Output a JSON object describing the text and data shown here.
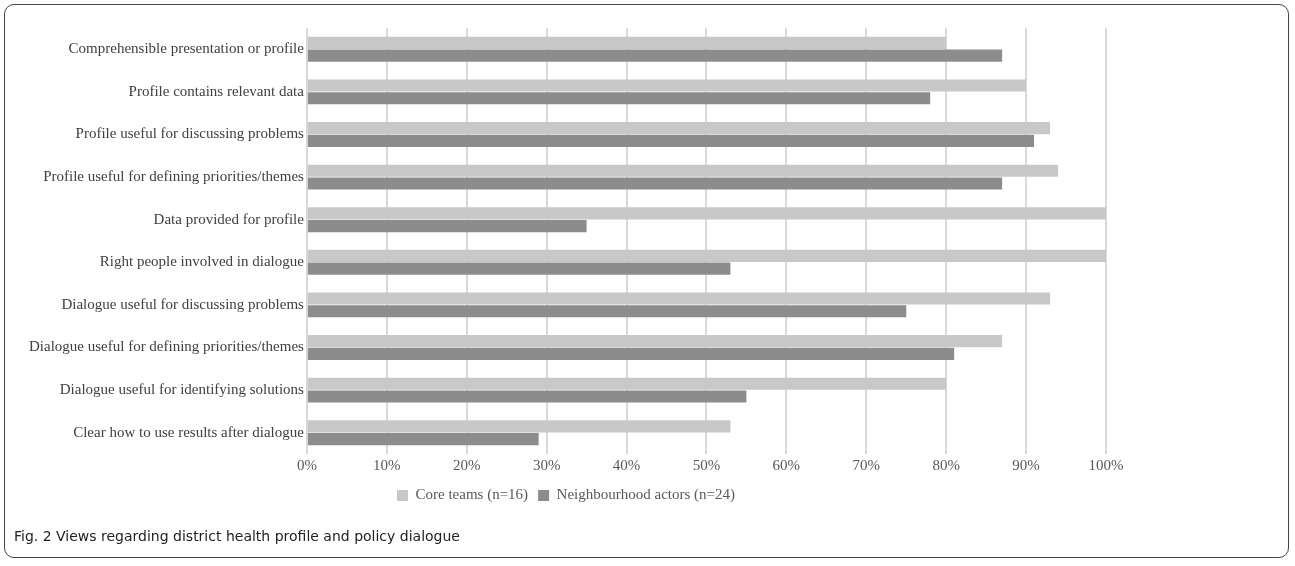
{
  "chart_data": {
    "type": "bar",
    "orientation": "horizontal",
    "categories": [
      "Comprehensible presentation or profile",
      "Profile contains relevant data",
      "Profile useful for discussing problems",
      "Profile useful for defining priorities/themes",
      "Data provided for profile",
      "Right people involved in dialogue",
      "Dialogue useful for discussing problems",
      "Dialogue useful for defining priorities/themes",
      "Dialogue useful for identifying solutions",
      "Clear how to use results after dialogue"
    ],
    "series": [
      {
        "name": "Core teams (n=16)",
        "color": "#c8c8c8",
        "values": [
          80,
          90,
          93,
          94,
          100,
          100,
          93,
          87,
          80,
          53
        ]
      },
      {
        "name": "Neighbourhood actors (n=24)",
        "color": "#8c8c8c",
        "values": [
          87,
          78,
          91,
          87,
          35,
          53,
          75,
          81,
          55,
          29
        ]
      }
    ],
    "xlim": [
      0,
      100
    ],
    "xticks": [
      {
        "value": 0,
        "label": "0%"
      },
      {
        "value": 10,
        "label": "10%"
      },
      {
        "value": 20,
        "label": "20%"
      },
      {
        "value": 30,
        "label": "30%"
      },
      {
        "value": 40,
        "label": "40%"
      },
      {
        "value": 50,
        "label": "50%"
      },
      {
        "value": 60,
        "label": "60%"
      },
      {
        "value": 70,
        "label": "70%"
      },
      {
        "value": 80,
        "label": "80%"
      },
      {
        "value": 90,
        "label": "90%"
      },
      {
        "value": 100,
        "label": "100%"
      }
    ],
    "grid": "x",
    "legend": "bottom",
    "annotations": [
      "Fig. 2 Views regarding district health profile and policy dialogue"
    ]
  }
}
